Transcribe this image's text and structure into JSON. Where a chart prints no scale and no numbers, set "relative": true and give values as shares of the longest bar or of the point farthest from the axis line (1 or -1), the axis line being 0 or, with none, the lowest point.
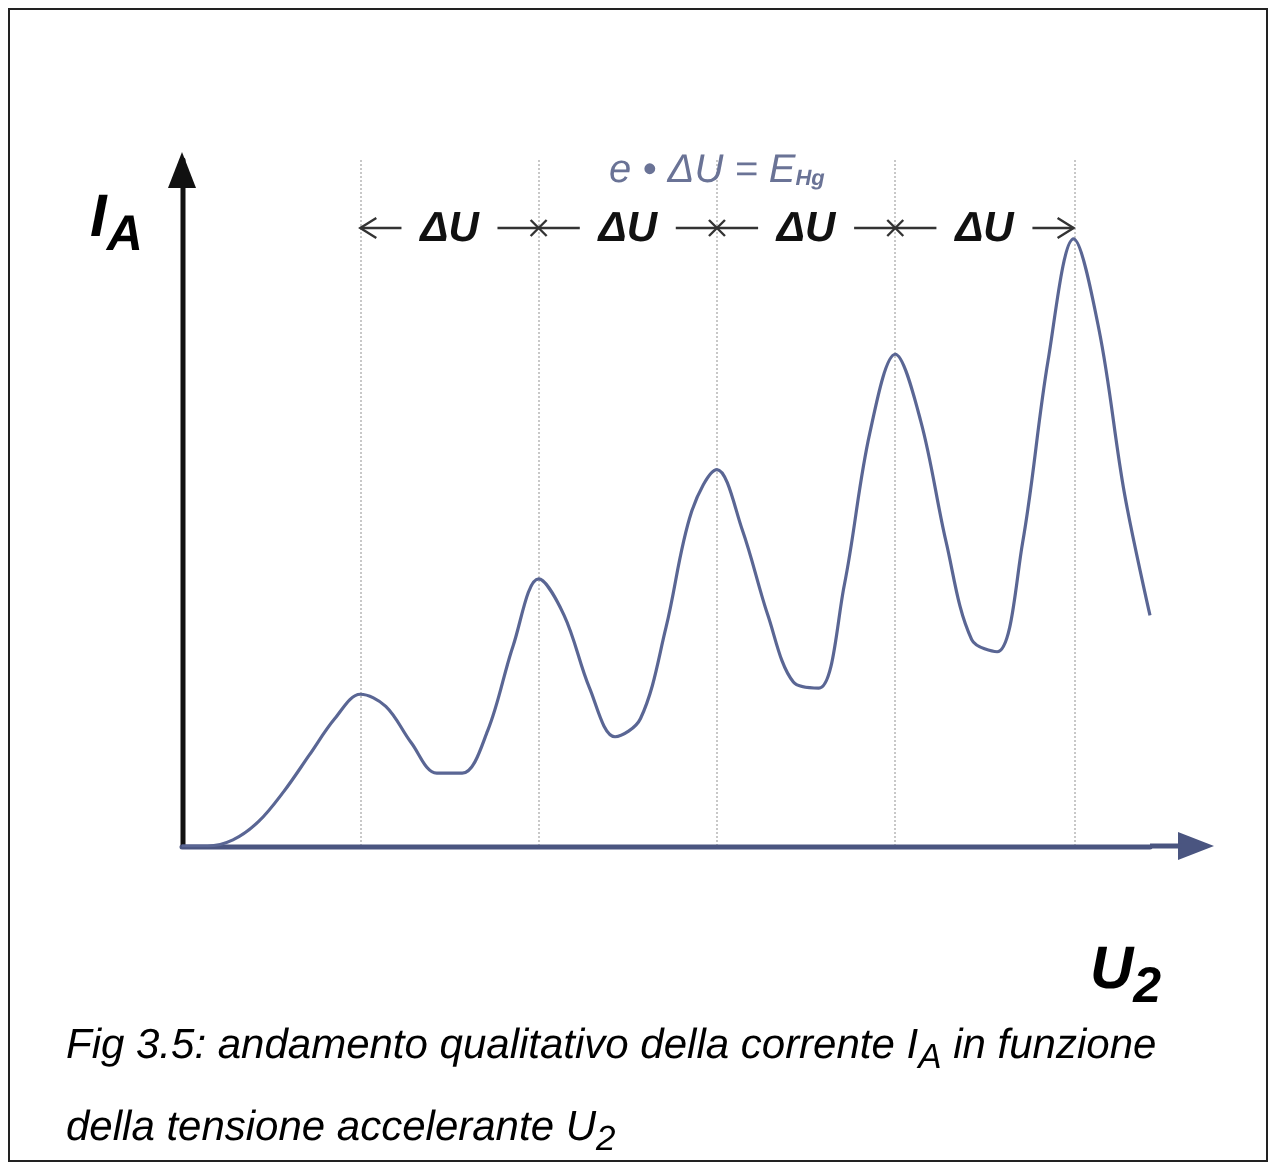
{
  "chart_data": {
    "type": "line",
    "relative": true,
    "xlabel": "U$_{2}$",
    "ylabel": "I$_{A}$",
    "color": "#5a6694",
    "marker": "none",
    "grid": "x",
    "categories": [
      null,
      null,
      null,
      null,
      null,
      null,
      null,
      null,
      null,
      null,
      null,
      null,
      null,
      null,
      null,
      null,
      null,
      null,
      null,
      null,
      null,
      null,
      null,
      null,
      null,
      null,
      null,
      null,
      null,
      null,
      null,
      null,
      null,
      null,
      null,
      null,
      null,
      null,
      null
    ],
    "values": [
      0,
      0,
      0.01,
      0.04,
      0.09,
      0.15,
      0.21,
      0.25,
      0.23,
      0.17,
      0.12,
      0.12,
      0.19,
      0.33,
      0.44,
      0.38,
      0.26,
      0.18,
      0.21,
      0.36,
      0.55,
      0.62,
      0.52,
      0.38,
      0.27,
      0.26,
      0.43,
      0.68,
      0.81,
      0.7,
      0.5,
      0.34,
      0.32,
      0.5,
      0.8,
      1,
      0.85,
      0.58,
      0.38
    ],
    "annotations": [
      "e • ΔU = E$_{Hg}$",
      "ΔU",
      "ΔU",
      "ΔU",
      "ΔU",
      "Fig 3.5: andamento qualitativo della corrente I$_{A}$ in funzione della tensione accelerante U$_{2}$"
    ]
  }
}
